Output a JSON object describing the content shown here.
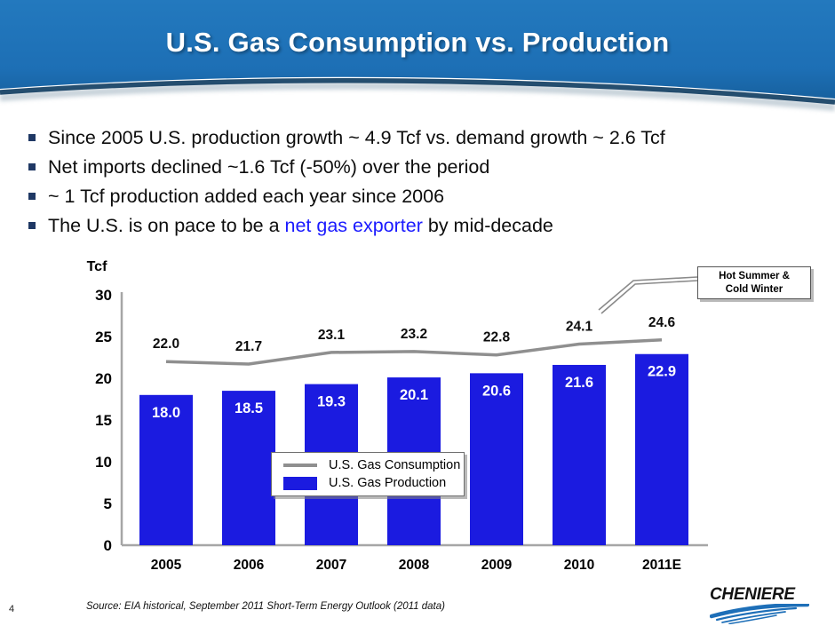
{
  "slide": {
    "title": "U.S. Gas Consumption vs. Production",
    "page_number": "4",
    "source_note": "Source: EIA historical, September 2011 Short-Term Energy Outlook (2011 data)",
    "logo_text": "CHENIERE"
  },
  "bullets": [
    {
      "pre": "Since 2005 U.S. production growth ~ 4.9 Tcf vs. demand growth ~ 2.6 Tcf"
    },
    {
      "pre": "Net imports declined ~1.6 Tcf (-50%) over the period"
    },
    {
      "pre": "~ 1 Tcf production added each year since 2006"
    },
    {
      "pre": "The U.S. is on pace to be a ",
      "link": "net gas exporter",
      "post": " by mid-decade"
    }
  ],
  "annotation": {
    "line1": "Hot Summer &",
    "line2": "Cold Winter"
  },
  "legend": {
    "consumption_label": "U.S. Gas Consumption",
    "production_label": "U.S. Gas Production"
  },
  "colors": {
    "bar_blue": "#1b1be0",
    "line_gray": "#8f8f8f",
    "banner_blue": "#1f72b8",
    "hyperlink_blue": "#1a1aff",
    "bullet_navy": "#1f3864"
  },
  "chart_data": {
    "type": "bar",
    "title": "",
    "ylabel": "Tcf",
    "xlabel": "",
    "ylim": [
      0,
      30
    ],
    "yticks": [
      0,
      5,
      10,
      15,
      20,
      25,
      30
    ],
    "grid": false,
    "legend_position": "inside-bottom-center",
    "annotation": "Hot Summer & Cold Winter (callout pointing at 2010-2011E consumption)",
    "categories": [
      "2005",
      "2006",
      "2007",
      "2008",
      "2009",
      "2010",
      "2011E"
    ],
    "series": [
      {
        "name": "U.S. Gas Consumption",
        "render": "line",
        "color": "#8f8f8f",
        "values": [
          22.0,
          21.7,
          23.1,
          23.2,
          22.8,
          24.1,
          24.6
        ]
      },
      {
        "name": "U.S. Gas Production",
        "render": "bar",
        "color": "#1b1be0",
        "values": [
          18.0,
          18.5,
          19.3,
          20.1,
          20.6,
          21.6,
          22.9
        ]
      }
    ]
  }
}
